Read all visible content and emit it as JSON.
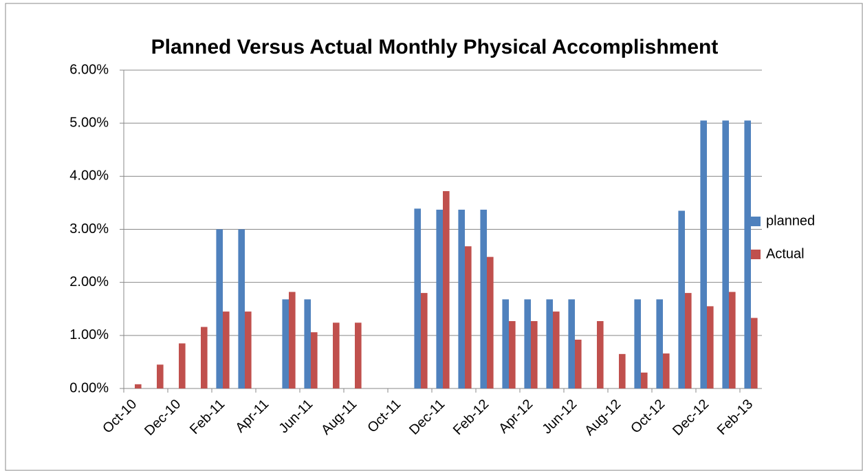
{
  "chart_data": {
    "type": "bar",
    "title": "Planned Versus Actual Monthly Physical Accomplishment",
    "categories": [
      "Oct-10",
      null,
      "Dec-10",
      null,
      "Feb-11",
      null,
      "Apr-11",
      null,
      "Jun-11",
      null,
      "Aug-11",
      null,
      "Oct-11",
      null,
      "Dec-11",
      null,
      "Feb-12",
      null,
      "Apr-12",
      null,
      "Jun-12",
      null,
      "Aug-12",
      null,
      "Oct-12",
      null,
      "Dec-12",
      null,
      "Feb-13"
    ],
    "series": [
      {
        "name": "planned",
        "color": "#4f81bd",
        "values": [
          null,
          null,
          null,
          null,
          3.0,
          3.0,
          null,
          1.68,
          1.68,
          null,
          null,
          null,
          null,
          3.39,
          3.37,
          3.37,
          3.37,
          1.68,
          1.68,
          1.68,
          1.68,
          null,
          null,
          1.68,
          1.68,
          3.35,
          5.05,
          5.05,
          5.05
        ]
      },
      {
        "name": "Actual",
        "color": "#c0504d",
        "values": [
          0.08,
          0.45,
          0.85,
          1.16,
          1.45,
          1.45,
          null,
          1.82,
          1.06,
          1.24,
          1.24,
          null,
          null,
          1.8,
          3.72,
          2.68,
          2.48,
          1.27,
          1.27,
          1.45,
          0.92,
          1.27,
          0.65,
          0.3,
          0.66,
          1.8,
          1.55,
          1.82,
          1.33
        ]
      }
    ],
    "ylim": [
      0,
      6
    ],
    "yticks": [
      {
        "value": 0,
        "label": "0.00%"
      },
      {
        "value": 1,
        "label": "1.00%"
      },
      {
        "value": 2,
        "label": "2.00%"
      },
      {
        "value": 3,
        "label": "3.00%"
      },
      {
        "value": 4,
        "label": "4.00%"
      },
      {
        "value": 5,
        "label": "5.00%"
      },
      {
        "value": 6,
        "label": "6.00%"
      }
    ],
    "grid": true,
    "legend": "right"
  }
}
